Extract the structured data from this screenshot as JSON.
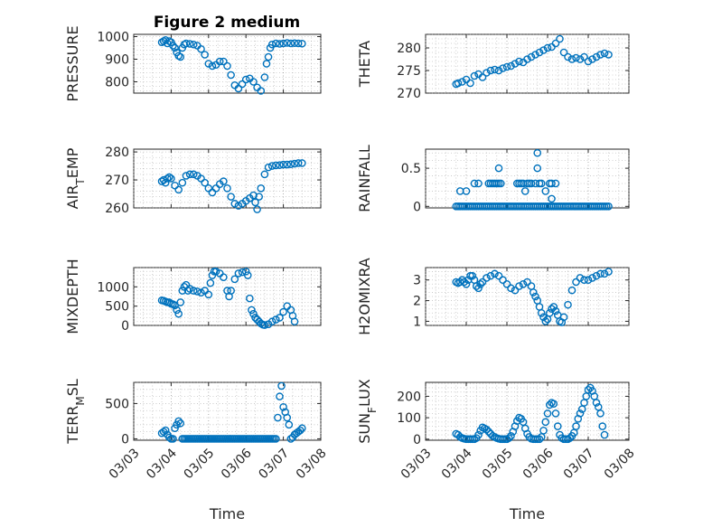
{
  "figure": {
    "title": "Figure 2 medium"
  },
  "colors": {
    "marker": "#0072BD",
    "axis": "#262626",
    "grid": "#9a9a9a"
  },
  "chart_data": [
    {
      "type": "scatter",
      "ylabel": "PRESSURE",
      "xlabel": "",
      "title": "Figure 2 medium",
      "xlim": [
        "03/03",
        "03/08"
      ],
      "ylim": [
        750,
        1010
      ],
      "yticks": [
        800,
        900,
        1000
      ],
      "xticks": [
        "03/03",
        "03/04",
        "03/05",
        "03/06",
        "03/07",
        "03/08"
      ],
      "show_xticklabels": false,
      "grid": true,
      "marker": "circle",
      "x": [
        3.75,
        3.8,
        3.85,
        3.9,
        3.95,
        4.0,
        4.05,
        4.1,
        4.15,
        4.2,
        4.25,
        4.3,
        4.35,
        4.4,
        4.5,
        4.6,
        4.7,
        4.8,
        4.9,
        5.0,
        5.1,
        5.2,
        5.3,
        5.4,
        5.5,
        5.6,
        5.7,
        5.8,
        5.9,
        6.0,
        6.1,
        6.2,
        6.3,
        6.4,
        6.5,
        6.55,
        6.6,
        6.65,
        6.7,
        6.8,
        6.9,
        7.0,
        7.1,
        7.2,
        7.3,
        7.4,
        7.5
      ],
      "y": [
        975,
        980,
        985,
        970,
        980,
        975,
        960,
        950,
        930,
        915,
        910,
        950,
        965,
        970,
        968,
        965,
        960,
        945,
        920,
        880,
        870,
        875,
        890,
        890,
        870,
        830,
        785,
        770,
        790,
        810,
        815,
        800,
        775,
        760,
        820,
        880,
        910,
        950,
        965,
        970,
        968,
        970,
        972,
        970,
        971,
        970,
        969
      ]
    },
    {
      "type": "scatter",
      "ylabel": "THETA",
      "xlabel": "",
      "xlim": [
        "03/03",
        "03/08"
      ],
      "ylim": [
        270,
        283
      ],
      "yticks": [
        270,
        275,
        280
      ],
      "xticks": [
        "03/03",
        "03/04",
        "03/05",
        "03/06",
        "03/07",
        "03/08"
      ],
      "show_xticklabels": false,
      "grid": true,
      "marker": "circle",
      "x": [
        3.75,
        3.8,
        3.9,
        4.0,
        4.1,
        4.2,
        4.3,
        4.4,
        4.5,
        4.6,
        4.7,
        4.8,
        4.9,
        5.0,
        5.1,
        5.2,
        5.3,
        5.4,
        5.5,
        5.6,
        5.7,
        5.8,
        5.9,
        6.0,
        6.1,
        6.2,
        6.3,
        6.4,
        6.5,
        6.6,
        6.7,
        6.8,
        6.9,
        7.0,
        7.1,
        7.2,
        7.3,
        7.4,
        7.5
      ],
      "y": [
        272.0,
        272.2,
        272.5,
        273.0,
        272.2,
        273.8,
        274.2,
        273.5,
        274.5,
        275.0,
        275.2,
        275.0,
        275.5,
        275.8,
        276.0,
        276.5,
        277.0,
        276.8,
        277.5,
        278.0,
        278.5,
        279.0,
        279.5,
        280.0,
        280.2,
        281.0,
        282.0,
        279.0,
        278.0,
        277.5,
        277.8,
        277.5,
        278.0,
        277.0,
        277.5,
        278.0,
        278.5,
        278.8,
        278.5
      ]
    },
    {
      "type": "scatter",
      "ylabel": "AIR_TEMP",
      "xlabel": "",
      "xlim": [
        "03/03",
        "03/08"
      ],
      "ylim": [
        260,
        281
      ],
      "yticks": [
        260,
        270,
        280
      ],
      "xticks": [
        "03/03",
        "03/04",
        "03/05",
        "03/06",
        "03/07",
        "03/08"
      ],
      "show_xticklabels": false,
      "grid": true,
      "marker": "circle",
      "x": [
        3.75,
        3.8,
        3.85,
        3.9,
        3.95,
        4.0,
        4.1,
        4.2,
        4.3,
        4.4,
        4.5,
        4.6,
        4.7,
        4.8,
        4.9,
        5.0,
        5.1,
        5.2,
        5.3,
        5.4,
        5.5,
        5.6,
        5.7,
        5.8,
        5.9,
        6.0,
        6.1,
        6.2,
        6.25,
        6.3,
        6.35,
        6.4,
        6.5,
        6.6,
        6.7,
        6.8,
        6.9,
        7.0,
        7.1,
        7.2,
        7.3,
        7.4,
        7.5
      ],
      "y": [
        269.5,
        270.0,
        269.0,
        270.5,
        271.0,
        270.5,
        268.0,
        266.5,
        269.0,
        271.5,
        272.0,
        272.0,
        271.5,
        270.5,
        269.0,
        267.0,
        265.5,
        267.0,
        268.5,
        269.5,
        267.0,
        264.0,
        261.5,
        260.8,
        261.5,
        262.5,
        263.5,
        264.5,
        262.0,
        259.5,
        264.0,
        267.0,
        272.0,
        274.5,
        275.0,
        275.2,
        275.3,
        275.5,
        275.5,
        275.6,
        275.8,
        276.0,
        276.0
      ]
    },
    {
      "type": "scatter",
      "ylabel": "RAINFALL",
      "xlabel": "",
      "xlim": [
        "03/03",
        "03/08"
      ],
      "ylim": [
        -0.02,
        0.75
      ],
      "yticks": [
        0,
        0.5
      ],
      "xticks": [
        "03/03",
        "03/04",
        "03/05",
        "03/06",
        "03/07",
        "03/08"
      ],
      "show_xticklabels": false,
      "grid": true,
      "marker": "circle",
      "x": [
        3.75,
        3.8,
        3.85,
        3.9,
        3.95,
        4.0,
        4.05,
        4.1,
        4.15,
        4.2,
        4.25,
        4.3,
        4.35,
        4.4,
        4.45,
        4.5,
        4.55,
        4.6,
        4.65,
        4.7,
        4.75,
        4.8,
        4.85,
        4.9,
        4.95,
        5.0,
        5.05,
        5.1,
        5.15,
        5.2,
        5.25,
        5.3,
        5.35,
        5.4,
        5.45,
        5.5,
        5.55,
        5.6,
        5.65,
        5.7,
        5.75,
        5.8,
        5.85,
        5.9,
        5.95,
        6.0,
        6.05,
        6.1,
        6.15,
        6.2,
        6.25,
        6.3,
        6.35,
        6.4,
        6.45,
        6.5,
        6.55,
        6.6,
        6.65,
        6.7,
        6.75,
        6.8,
        6.85,
        6.9,
        6.95,
        7.0,
        7.05,
        7.1,
        7.15,
        7.2,
        7.25,
        7.3,
        7.35,
        7.4,
        7.45,
        7.5,
        3.85,
        4.0,
        4.2,
        4.3,
        4.55,
        4.6,
        4.65,
        4.7,
        4.75,
        4.8,
        4.85,
        4.8,
        5.25,
        5.3,
        5.35,
        5.4,
        5.45,
        5.5,
        5.55,
        5.6,
        5.7,
        5.75,
        5.8,
        5.85,
        5.75,
        6.05,
        6.1,
        6.1,
        6.2,
        5.95
      ],
      "y": [
        0,
        0,
        0,
        0,
        0,
        0,
        0,
        0,
        0,
        0,
        0,
        0,
        0,
        0,
        0,
        0,
        0,
        0,
        0,
        0,
        0,
        0,
        0,
        0,
        0,
        0,
        0,
        0,
        0,
        0,
        0,
        0,
        0,
        0,
        0,
        0,
        0,
        0,
        0,
        0,
        0,
        0,
        0,
        0,
        0,
        0,
        0,
        0,
        0,
        0,
        0,
        0,
        0,
        0,
        0,
        0,
        0,
        0,
        0,
        0,
        0,
        0,
        0,
        0,
        0,
        0,
        0,
        0,
        0,
        0,
        0,
        0,
        0,
        0,
        0,
        0,
        0.2,
        0.2,
        0.3,
        0.3,
        0.3,
        0.3,
        0.3,
        0.3,
        0.3,
        0.3,
        0.3,
        0.5,
        0.3,
        0.3,
        0.3,
        0.3,
        0.2,
        0.3,
        0.3,
        0.3,
        0.3,
        0.5,
        0.3,
        0.3,
        0.7,
        0.3,
        0.3,
        0.1,
        0.3,
        0.2
      ]
    },
    {
      "type": "scatter",
      "ylabel": "MIXDEPTH",
      "xlabel": "",
      "xlim": [
        "03/03",
        "03/08"
      ],
      "ylim": [
        0,
        1500
      ],
      "yticks": [
        0,
        500,
        1000
      ],
      "xticks": [
        "03/03",
        "03/04",
        "03/05",
        "03/06",
        "03/07",
        "03/08"
      ],
      "show_xticklabels": false,
      "grid": true,
      "marker": "circle",
      "x": [
        3.75,
        3.8,
        3.85,
        3.9,
        3.95,
        4.0,
        4.05,
        4.1,
        4.15,
        4.2,
        4.25,
        4.3,
        4.35,
        4.4,
        4.45,
        4.5,
        4.6,
        4.7,
        4.8,
        4.9,
        5.0,
        5.05,
        5.1,
        5.15,
        5.2,
        5.3,
        5.4,
        5.5,
        5.55,
        5.6,
        5.7,
        5.8,
        5.9,
        6.0,
        6.05,
        6.1,
        6.15,
        6.2,
        6.25,
        6.3,
        6.35,
        6.4,
        6.45,
        6.5,
        6.6,
        6.7,
        6.8,
        6.9,
        7.0,
        7.1,
        7.2,
        7.25,
        7.3
      ],
      "y": [
        650,
        640,
        620,
        600,
        600,
        560,
        550,
        520,
        400,
        300,
        600,
        900,
        1000,
        1050,
        900,
        950,
        900,
        880,
        850,
        900,
        800,
        1100,
        1300,
        1400,
        1400,
        1350,
        1250,
        900,
        750,
        900,
        1200,
        1350,
        1380,
        1400,
        1300,
        700,
        400,
        300,
        200,
        150,
        100,
        50,
        20,
        10,
        30,
        100,
        150,
        200,
        350,
        500,
        400,
        250,
        100
      ]
    },
    {
      "type": "scatter",
      "ylabel": "H2OMIXRA",
      "xlabel": "",
      "xlim": [
        "03/03",
        "03/08"
      ],
      "ylim": [
        0.8,
        3.6
      ],
      "yticks": [
        1,
        2,
        3
      ],
      "xticks": [
        "03/03",
        "03/04",
        "03/05",
        "03/06",
        "03/07",
        "03/08"
      ],
      "show_xticklabels": false,
      "grid": true,
      "marker": "circle",
      "x": [
        3.75,
        3.8,
        3.85,
        3.9,
        3.95,
        4.0,
        4.05,
        4.1,
        4.15,
        4.2,
        4.25,
        4.3,
        4.35,
        4.4,
        4.5,
        4.6,
        4.7,
        4.8,
        4.9,
        5.0,
        5.1,
        5.2,
        5.3,
        5.4,
        5.5,
        5.6,
        5.65,
        5.7,
        5.75,
        5.8,
        5.85,
        5.9,
        5.95,
        6.0,
        6.05,
        6.1,
        6.15,
        6.2,
        6.25,
        6.3,
        6.35,
        6.4,
        6.5,
        6.6,
        6.7,
        6.8,
        6.9,
        7.0,
        7.1,
        7.2,
        7.3,
        7.4,
        7.5
      ],
      "y": [
        2.9,
        2.85,
        2.9,
        3.0,
        2.9,
        2.8,
        3.0,
        3.2,
        3.2,
        3.0,
        2.7,
        2.6,
        2.8,
        2.9,
        3.1,
        3.2,
        3.3,
        3.2,
        3.0,
        2.8,
        2.6,
        2.5,
        2.7,
        2.8,
        2.9,
        2.7,
        2.4,
        2.2,
        2.0,
        1.7,
        1.4,
        1.2,
        1.0,
        1.1,
        1.4,
        1.6,
        1.7,
        1.5,
        1.3,
        1.0,
        0.95,
        1.2,
        1.8,
        2.5,
        2.9,
        3.1,
        3.0,
        3.0,
        3.1,
        3.2,
        3.3,
        3.3,
        3.4
      ]
    },
    {
      "type": "scatter",
      "ylabel": "TERR_MSL",
      "xlabel": "Time",
      "xlim": [
        "03/03",
        "03/08"
      ],
      "ylim": [
        -20,
        800
      ],
      "yticks": [
        0,
        500
      ],
      "xticks": [
        "03/03",
        "03/04",
        "03/05",
        "03/06",
        "03/07",
        "03/08"
      ],
      "show_xticklabels": true,
      "grid": true,
      "marker": "circle",
      "x": [
        3.75,
        3.8,
        3.85,
        3.9,
        3.95,
        4.0,
        4.05,
        4.1,
        4.15,
        4.2,
        4.25,
        4.3,
        4.35,
        4.4,
        4.45,
        4.5,
        4.55,
        4.6,
        4.65,
        4.7,
        4.75,
        4.8,
        4.85,
        4.9,
        4.95,
        5.0,
        5.05,
        5.1,
        5.15,
        5.2,
        5.25,
        5.3,
        5.35,
        5.4,
        5.45,
        5.5,
        5.55,
        5.6,
        5.65,
        5.7,
        5.75,
        5.8,
        5.85,
        5.9,
        5.95,
        6.0,
        6.05,
        6.1,
        6.15,
        6.2,
        6.25,
        6.3,
        6.35,
        6.4,
        6.45,
        6.5,
        6.55,
        6.6,
        6.65,
        6.7,
        6.75,
        6.8,
        6.85,
        6.9,
        6.95,
        7.0,
        7.05,
        7.1,
        7.15,
        7.2,
        7.25,
        7.3,
        7.35,
        7.4,
        7.45,
        7.5
      ],
      "y": [
        80,
        100,
        120,
        60,
        20,
        0,
        0,
        150,
        200,
        250,
        220,
        0,
        0,
        0,
        0,
        0,
        0,
        0,
        0,
        0,
        0,
        0,
        0,
        0,
        0,
        0,
        0,
        0,
        0,
        0,
        0,
        0,
        0,
        0,
        0,
        0,
        0,
        0,
        0,
        0,
        0,
        0,
        0,
        0,
        0,
        0,
        0,
        0,
        0,
        0,
        0,
        0,
        0,
        0,
        0,
        0,
        0,
        0,
        0,
        0,
        0,
        0,
        300,
        600,
        750,
        450,
        380,
        300,
        200,
        0,
        20,
        60,
        80,
        100,
        120,
        150
      ]
    },
    {
      "type": "scatter",
      "ylabel": "SUN_FLUX",
      "xlabel": "Time",
      "xlim": [
        "03/03",
        "03/08"
      ],
      "ylim": [
        -5,
        265
      ],
      "yticks": [
        0,
        100,
        200
      ],
      "xticks": [
        "03/03",
        "03/04",
        "03/05",
        "03/06",
        "03/07",
        "03/08"
      ],
      "show_xticklabels": true,
      "grid": true,
      "marker": "circle",
      "x": [
        3.75,
        3.8,
        3.85,
        3.9,
        3.95,
        4.0,
        4.05,
        4.1,
        4.15,
        4.2,
        4.25,
        4.3,
        4.35,
        4.4,
        4.45,
        4.5,
        4.55,
        4.6,
        4.65,
        4.7,
        4.75,
        4.8,
        4.85,
        4.9,
        4.95,
        5.0,
        5.05,
        5.1,
        5.15,
        5.2,
        5.25,
        5.3,
        5.35,
        5.4,
        5.45,
        5.5,
        5.55,
        5.6,
        5.65,
        5.7,
        5.75,
        5.8,
        5.85,
        5.9,
        5.95,
        6.0,
        6.05,
        6.1,
        6.15,
        6.2,
        6.25,
        6.3,
        6.35,
        6.4,
        6.45,
        6.5,
        6.55,
        6.6,
        6.65,
        6.7,
        6.75,
        6.8,
        6.85,
        6.9,
        6.95,
        7.0,
        7.05,
        7.1,
        7.15,
        7.2,
        7.25,
        7.3,
        7.35,
        7.4
      ],
      "y": [
        25,
        20,
        10,
        5,
        2,
        0,
        0,
        0,
        0,
        0,
        5,
        20,
        40,
        55,
        50,
        45,
        35,
        25,
        15,
        10,
        5,
        2,
        0,
        0,
        0,
        0,
        5,
        15,
        35,
        60,
        85,
        100,
        95,
        80,
        50,
        25,
        10,
        2,
        0,
        0,
        0,
        0,
        10,
        40,
        80,
        120,
        160,
        170,
        165,
        120,
        60,
        20,
        5,
        0,
        0,
        0,
        5,
        15,
        30,
        60,
        95,
        120,
        140,
        170,
        200,
        230,
        240,
        225,
        200,
        170,
        150,
        120,
        60,
        20
      ]
    }
  ]
}
